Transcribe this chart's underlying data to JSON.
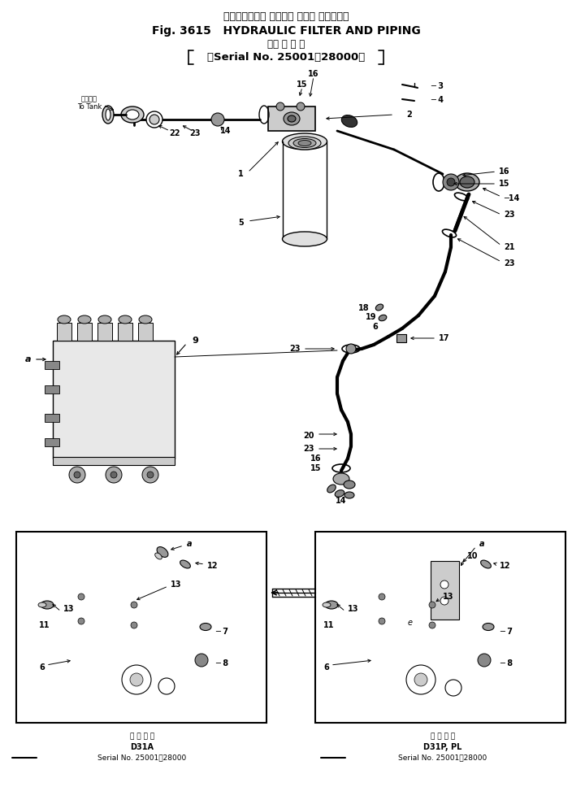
{
  "title_jp": "ハイドロリック フイルタ および パイピング",
  "title_en": "Fig. 3615   HYDRAULIC FILTER AND PIPING",
  "subtitle_jp": "（適 用 号 機",
  "subtitle_serial": "（Serial No. 25001～28000）",
  "footer_left_label": "適 用 号 機",
  "footer_left_model": "D31A",
  "footer_left_serial": "Serial No. 25001～28000",
  "footer_right_label": "適 用 号 機",
  "footer_right_model": "D31P, PL",
  "footer_right_serial": "Serial No. 25001～28000",
  "bg_color": "#ffffff",
  "lc": "#000000",
  "fig_width": 7.04,
  "fig_height": 9.84,
  "dpi": 100
}
